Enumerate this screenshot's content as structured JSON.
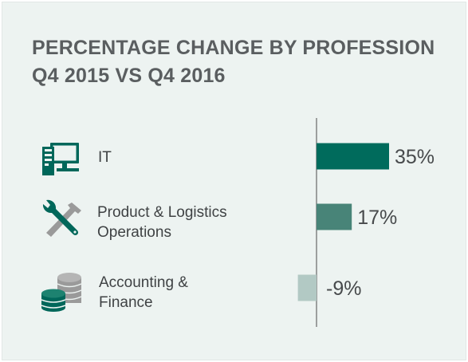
{
  "chart_data": {
    "type": "bar",
    "orientation": "horizontal",
    "title": "PERCENTAGE CHANGE BY PROFESSION",
    "subtitle": "Q4 2015 VS Q4 2016",
    "categories": [
      "IT",
      "Product & Logistics Operations",
      "Accounting & Finance"
    ],
    "category_lines": [
      [
        "IT"
      ],
      [
        "Product & Logistics",
        "Operations"
      ],
      [
        "Accounting &",
        "Finance"
      ]
    ],
    "values": [
      35,
      17,
      -9
    ],
    "value_labels": [
      "35%",
      "17%",
      "-9%"
    ],
    "units": "%",
    "bar_colors": [
      "#006b5c",
      "#488478",
      "#b2c9c4"
    ],
    "baseline": 0,
    "grid": false,
    "legend": "none"
  },
  "icons": [
    "computer-icon",
    "wrench-hammer-icon",
    "coin-stack-icon"
  ],
  "colors": {
    "background": "#edf3f1",
    "title": "#5a5e60",
    "icon": "#00675a",
    "icon_secondary": "#9a9a9a"
  }
}
